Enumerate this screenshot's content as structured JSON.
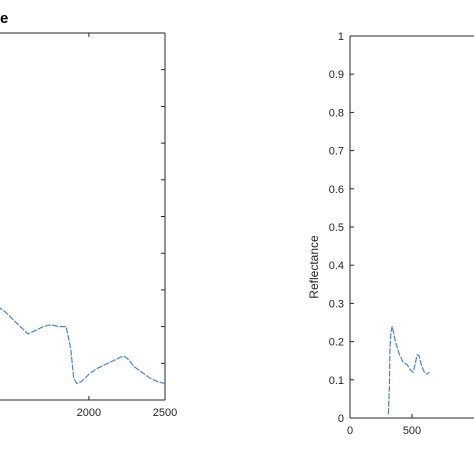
{
  "chart_data": [
    {
      "type": "line",
      "title": "e",
      "xlabel": "",
      "ylabel": "",
      "xlim": [
        1350,
        2500
      ],
      "ylim": [
        0,
        1
      ],
      "x_ticks": [
        "2000",
        "2500"
      ],
      "series": [
        {
          "color": "#4a86c8",
          "x": [
            1350,
            1400,
            1450,
            1500,
            1550,
            1600,
            1650,
            1700,
            1750,
            1800,
            1850,
            1880,
            1900,
            1920,
            1950,
            2000,
            2050,
            2100,
            2150,
            2200,
            2230,
            2260,
            2300,
            2350,
            2400,
            2450,
            2500
          ],
          "y": [
            0.26,
            0.255,
            0.24,
            0.22,
            0.2,
            0.18,
            0.19,
            0.2,
            0.205,
            0.2,
            0.2,
            0.14,
            0.06,
            0.045,
            0.05,
            0.07,
            0.085,
            0.095,
            0.105,
            0.115,
            0.12,
            0.11,
            0.09,
            0.075,
            0.06,
            0.05,
            0.045
          ]
        }
      ]
    },
    {
      "type": "line",
      "title": "",
      "xlabel": "",
      "ylabel": "Reflectance",
      "xlim": [
        0,
        1000
      ],
      "ylim": [
        0,
        1
      ],
      "x_ticks": [
        "0",
        "500"
      ],
      "y_ticks": [
        "0",
        "0.1",
        "0.2",
        "0.3",
        "0.4",
        "0.5",
        "0.6",
        "0.7",
        "0.8",
        "0.9",
        "1"
      ],
      "series": [
        {
          "color": "#4a86c8",
          "x": [
            310,
            318,
            322,
            330,
            340,
            350,
            370,
            400,
            430,
            460,
            490,
            510,
            525,
            540,
            555,
            570,
            585,
            600,
            620,
            640
          ],
          "y": [
            0.01,
            0.08,
            0.18,
            0.225,
            0.24,
            0.225,
            0.195,
            0.165,
            0.145,
            0.14,
            0.125,
            0.12,
            0.14,
            0.165,
            0.165,
            0.145,
            0.13,
            0.12,
            0.115,
            0.12
          ]
        }
      ]
    }
  ]
}
